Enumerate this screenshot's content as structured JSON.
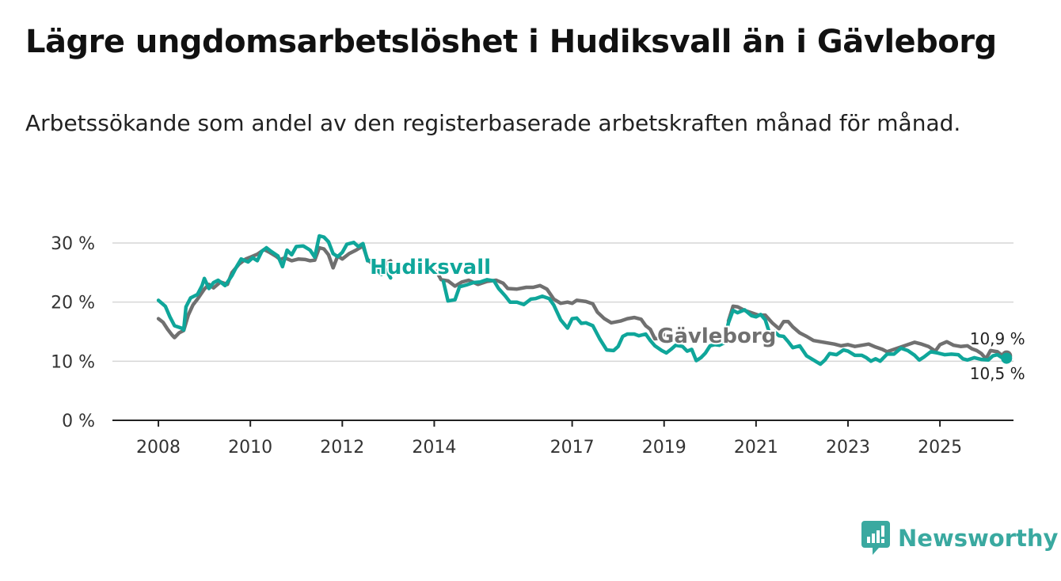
{
  "title": "Lägre ungdomsarbetslöshet i Hudiksvall än i Gävleborg",
  "subtitle": "Arbetssökande som andel av den registerbaserade arbetskraften månad för månad.",
  "brand": {
    "name": "Newsworthy",
    "color": "#3aa9a0"
  },
  "chart_data": {
    "type": "line",
    "title": "Lägre ungdomsarbetslöshet i Hudiksvall än i Gävleborg",
    "xlabel": "",
    "ylabel": "",
    "x_range": [
      2007.0,
      2026.6
    ],
    "ylim": [
      0,
      30
    ],
    "y_ticks": [
      {
        "value": 0,
        "label": "0 %"
      },
      {
        "value": 10,
        "label": "10 %"
      },
      {
        "value": 20,
        "label": "20 %"
      },
      {
        "value": 30,
        "label": "30 %"
      }
    ],
    "x_ticks": [
      {
        "value": 2008,
        "label": "2008"
      },
      {
        "value": 2010,
        "label": "2010"
      },
      {
        "value": 2012,
        "label": "2012"
      },
      {
        "value": 2014,
        "label": "2014"
      },
      {
        "value": 2017,
        "label": "2017"
      },
      {
        "value": 2019,
        "label": "2019"
      },
      {
        "value": 2021,
        "label": "2021"
      },
      {
        "value": 2023,
        "label": "2023"
      },
      {
        "value": 2025,
        "label": "2025"
      }
    ],
    "grid": true,
    "series": [
      {
        "name": "Gävleborg",
        "color": "#707070",
        "end_label": "10,9 %",
        "points": [
          [
            2008.0,
            17.2
          ],
          [
            2008.1,
            16.6
          ],
          [
            2008.2,
            15.4
          ],
          [
            2008.3,
            14.4
          ],
          [
            2008.35,
            14.0
          ],
          [
            2008.45,
            14.8
          ],
          [
            2008.55,
            15.2
          ],
          [
            2008.65,
            17.8
          ],
          [
            2008.75,
            19.5
          ],
          [
            2008.85,
            20.5
          ],
          [
            2009.0,
            22.2
          ],
          [
            2009.1,
            23.0
          ],
          [
            2009.2,
            22.4
          ],
          [
            2009.35,
            23.4
          ],
          [
            2009.5,
            23.0
          ],
          [
            2009.6,
            25.0
          ],
          [
            2009.75,
            26.4
          ],
          [
            2009.9,
            27.3
          ],
          [
            2010.0,
            27.6
          ],
          [
            2010.15,
            28.1
          ],
          [
            2010.3,
            28.9
          ],
          [
            2010.4,
            28.5
          ],
          [
            2010.55,
            27.8
          ],
          [
            2010.65,
            27.2
          ],
          [
            2010.75,
            27.5
          ],
          [
            2010.9,
            27.0
          ],
          [
            2011.05,
            27.3
          ],
          [
            2011.2,
            27.2
          ],
          [
            2011.3,
            27.0
          ],
          [
            2011.4,
            27.1
          ],
          [
            2011.5,
            29.2
          ],
          [
            2011.6,
            29.0
          ],
          [
            2011.7,
            28.0
          ],
          [
            2011.8,
            25.8
          ],
          [
            2011.9,
            27.8
          ],
          [
            2012.0,
            27.3
          ],
          [
            2012.15,
            28.2
          ],
          [
            2012.3,
            28.8
          ],
          [
            2012.45,
            29.5
          ],
          [
            2012.55,
            27.2
          ],
          [
            2012.65,
            26.5
          ],
          [
            2012.75,
            25.5
          ],
          [
            2012.85,
            25.0
          ],
          [
            2012.95,
            26.5
          ],
          [
            2013.05,
            27.0
          ],
          [
            2014.05,
            25.2
          ],
          [
            2014.15,
            23.8
          ],
          [
            2014.3,
            23.6
          ],
          [
            2014.45,
            22.7
          ],
          [
            2014.6,
            23.4
          ],
          [
            2014.75,
            23.7
          ],
          [
            2014.95,
            23.0
          ],
          [
            2015.15,
            23.5
          ],
          [
            2015.35,
            23.7
          ],
          [
            2015.5,
            23.2
          ],
          [
            2015.6,
            22.3
          ],
          [
            2015.8,
            22.2
          ],
          [
            2016.0,
            22.5
          ],
          [
            2016.15,
            22.5
          ],
          [
            2016.3,
            22.8
          ],
          [
            2016.45,
            22.2
          ],
          [
            2016.6,
            20.5
          ],
          [
            2016.75,
            19.8
          ],
          [
            2016.9,
            20.0
          ],
          [
            2017.0,
            19.8
          ],
          [
            2017.1,
            20.3
          ],
          [
            2017.3,
            20.1
          ],
          [
            2017.45,
            19.7
          ],
          [
            2017.55,
            18.3
          ],
          [
            2017.7,
            17.2
          ],
          [
            2017.85,
            16.5
          ],
          [
            2018.05,
            16.8
          ],
          [
            2018.2,
            17.2
          ],
          [
            2018.35,
            17.4
          ],
          [
            2018.5,
            17.1
          ],
          [
            2018.6,
            16.0
          ],
          [
            2018.7,
            15.4
          ],
          [
            2018.8,
            13.8
          ],
          [
            2018.9,
            13.9
          ],
          [
            2019.0,
            14.5
          ],
          [
            2020.4,
            16.8
          ],
          [
            2020.5,
            19.3
          ],
          [
            2020.6,
            19.2
          ],
          [
            2020.75,
            18.6
          ],
          [
            2020.9,
            18.2
          ],
          [
            2021.05,
            17.8
          ],
          [
            2021.2,
            17.8
          ],
          [
            2021.35,
            16.5
          ],
          [
            2021.5,
            15.5
          ],
          [
            2021.6,
            16.7
          ],
          [
            2021.7,
            16.7
          ],
          [
            2021.8,
            15.8
          ],
          [
            2021.95,
            14.8
          ],
          [
            2022.1,
            14.2
          ],
          [
            2022.25,
            13.5
          ],
          [
            2022.4,
            13.3
          ],
          [
            2022.55,
            13.1
          ],
          [
            2022.7,
            12.9
          ],
          [
            2022.85,
            12.6
          ],
          [
            2023.0,
            12.8
          ],
          [
            2023.15,
            12.5
          ],
          [
            2023.3,
            12.7
          ],
          [
            2023.45,
            12.9
          ],
          [
            2023.6,
            12.4
          ],
          [
            2023.75,
            12.0
          ],
          [
            2023.85,
            11.6
          ],
          [
            2024.0,
            12.0
          ],
          [
            2024.15,
            12.4
          ],
          [
            2024.3,
            12.8
          ],
          [
            2024.45,
            13.2
          ],
          [
            2024.6,
            12.9
          ],
          [
            2024.75,
            12.5
          ],
          [
            2024.9,
            11.7
          ],
          [
            2025.0,
            12.8
          ],
          [
            2025.15,
            13.3
          ],
          [
            2025.3,
            12.7
          ],
          [
            2025.45,
            12.5
          ],
          [
            2025.6,
            12.6
          ],
          [
            2025.7,
            12.1
          ],
          [
            2025.8,
            11.8
          ],
          [
            2025.9,
            11.3
          ],
          [
            2026.0,
            10.4
          ],
          [
            2026.1,
            11.8
          ],
          [
            2026.25,
            11.6
          ],
          [
            2026.35,
            11.0
          ],
          [
            2026.45,
            10.9
          ]
        ]
      },
      {
        "name": "Hudiksvall",
        "color": "#0fa69a",
        "end_label": "10,5 %",
        "points": [
          [
            2008.0,
            20.3
          ],
          [
            2008.15,
            19.3
          ],
          [
            2008.25,
            17.5
          ],
          [
            2008.35,
            16.0
          ],
          [
            2008.5,
            15.6
          ],
          [
            2008.55,
            15.3
          ],
          [
            2008.6,
            19.2
          ],
          [
            2008.7,
            20.7
          ],
          [
            2008.85,
            21.3
          ],
          [
            2008.95,
            22.8
          ],
          [
            2009.0,
            24.0
          ],
          [
            2009.1,
            22.3
          ],
          [
            2009.2,
            23.3
          ],
          [
            2009.3,
            23.7
          ],
          [
            2009.45,
            22.8
          ],
          [
            2009.6,
            24.5
          ],
          [
            2009.7,
            26.0
          ],
          [
            2009.8,
            27.3
          ],
          [
            2009.95,
            26.8
          ],
          [
            2010.05,
            27.5
          ],
          [
            2010.15,
            27.0
          ],
          [
            2010.25,
            28.6
          ],
          [
            2010.35,
            29.2
          ],
          [
            2010.45,
            28.6
          ],
          [
            2010.6,
            27.8
          ],
          [
            2010.7,
            26.0
          ],
          [
            2010.8,
            28.8
          ],
          [
            2010.9,
            28.0
          ],
          [
            2011.0,
            29.4
          ],
          [
            2011.15,
            29.5
          ],
          [
            2011.3,
            28.8
          ],
          [
            2011.4,
            27.6
          ],
          [
            2011.5,
            31.2
          ],
          [
            2011.6,
            31.0
          ],
          [
            2011.7,
            30.2
          ],
          [
            2011.8,
            28.2
          ],
          [
            2011.9,
            27.7
          ],
          [
            2012.0,
            28.4
          ],
          [
            2012.1,
            29.8
          ],
          [
            2012.25,
            30.1
          ],
          [
            2012.35,
            29.4
          ],
          [
            2012.45,
            29.9
          ],
          [
            2012.55,
            27.0
          ],
          [
            2012.65,
            27.1
          ],
          [
            2012.75,
            25.5
          ],
          [
            2012.85,
            24.7
          ],
          [
            2012.95,
            25.5
          ],
          [
            2013.05,
            24.1
          ],
          [
            2014.2,
            23.5
          ],
          [
            2014.3,
            20.2
          ],
          [
            2014.45,
            20.4
          ],
          [
            2014.55,
            22.6
          ],
          [
            2014.7,
            22.9
          ],
          [
            2014.85,
            23.3
          ],
          [
            2015.0,
            23.4
          ],
          [
            2015.15,
            23.8
          ],
          [
            2015.3,
            23.6
          ],
          [
            2015.4,
            22.3
          ],
          [
            2015.55,
            21.0
          ],
          [
            2015.65,
            20.0
          ],
          [
            2015.8,
            20.0
          ],
          [
            2015.95,
            19.6
          ],
          [
            2016.1,
            20.5
          ],
          [
            2016.2,
            20.6
          ],
          [
            2016.35,
            21.0
          ],
          [
            2016.5,
            20.6
          ],
          [
            2016.6,
            19.5
          ],
          [
            2016.75,
            17.0
          ],
          [
            2016.9,
            15.6
          ],
          [
            2017.0,
            17.2
          ],
          [
            2017.1,
            17.3
          ],
          [
            2017.2,
            16.4
          ],
          [
            2017.3,
            16.5
          ],
          [
            2017.45,
            16.0
          ],
          [
            2017.6,
            13.8
          ],
          [
            2017.75,
            11.9
          ],
          [
            2017.9,
            11.8
          ],
          [
            2018.0,
            12.5
          ],
          [
            2018.1,
            14.2
          ],
          [
            2018.2,
            14.6
          ],
          [
            2018.35,
            14.6
          ],
          [
            2018.45,
            14.3
          ],
          [
            2018.6,
            14.6
          ],
          [
            2018.7,
            13.5
          ],
          [
            2018.8,
            12.6
          ],
          [
            2018.95,
            11.8
          ],
          [
            2019.05,
            11.4
          ],
          [
            2019.15,
            12.0
          ],
          [
            2019.25,
            12.7
          ],
          [
            2019.4,
            12.5
          ],
          [
            2019.5,
            11.7
          ],
          [
            2019.6,
            12.0
          ],
          [
            2019.7,
            10.1
          ],
          [
            2019.8,
            10.6
          ],
          [
            2019.9,
            11.4
          ],
          [
            2020.0,
            12.6
          ],
          [
            2020.1,
            12.8
          ],
          [
            2020.2,
            12.7
          ],
          [
            2020.3,
            13.1
          ],
          [
            2020.4,
            16.5
          ],
          [
            2020.5,
            18.6
          ],
          [
            2020.6,
            18.2
          ],
          [
            2020.75,
            18.7
          ],
          [
            2020.9,
            17.7
          ],
          [
            2021.0,
            17.5
          ],
          [
            2021.1,
            17.9
          ],
          [
            2021.2,
            17.0
          ],
          [
            2021.3,
            14.6
          ],
          [
            2021.4,
            15.0
          ],
          [
            2021.5,
            14.3
          ],
          [
            2021.6,
            14.2
          ],
          [
            2021.7,
            13.3
          ],
          [
            2021.8,
            12.3
          ],
          [
            2021.95,
            12.6
          ],
          [
            2022.1,
            10.9
          ],
          [
            2022.25,
            10.2
          ],
          [
            2022.4,
            9.5
          ],
          [
            2022.5,
            10.2
          ],
          [
            2022.6,
            11.3
          ],
          [
            2022.75,
            11.1
          ],
          [
            2022.9,
            11.9
          ],
          [
            2023.0,
            11.7
          ],
          [
            2023.15,
            11.0
          ],
          [
            2023.3,
            11.0
          ],
          [
            2023.4,
            10.6
          ],
          [
            2023.5,
            10.0
          ],
          [
            2023.6,
            10.4
          ],
          [
            2023.7,
            10.0
          ],
          [
            2023.85,
            11.2
          ],
          [
            2024.0,
            11.2
          ],
          [
            2024.15,
            12.2
          ],
          [
            2024.3,
            11.8
          ],
          [
            2024.45,
            11.0
          ],
          [
            2024.55,
            10.2
          ],
          [
            2024.65,
            10.7
          ],
          [
            2024.8,
            11.6
          ],
          [
            2024.95,
            11.4
          ],
          [
            2025.1,
            11.1
          ],
          [
            2025.25,
            11.2
          ],
          [
            2025.4,
            11.1
          ],
          [
            2025.5,
            10.4
          ],
          [
            2025.6,
            10.2
          ],
          [
            2025.75,
            10.6
          ],
          [
            2025.9,
            10.3
          ],
          [
            2026.05,
            10.2
          ],
          [
            2026.15,
            10.9
          ],
          [
            2026.25,
            11.1
          ],
          [
            2026.35,
            10.6
          ],
          [
            2026.45,
            10.5
          ]
        ]
      }
    ]
  }
}
